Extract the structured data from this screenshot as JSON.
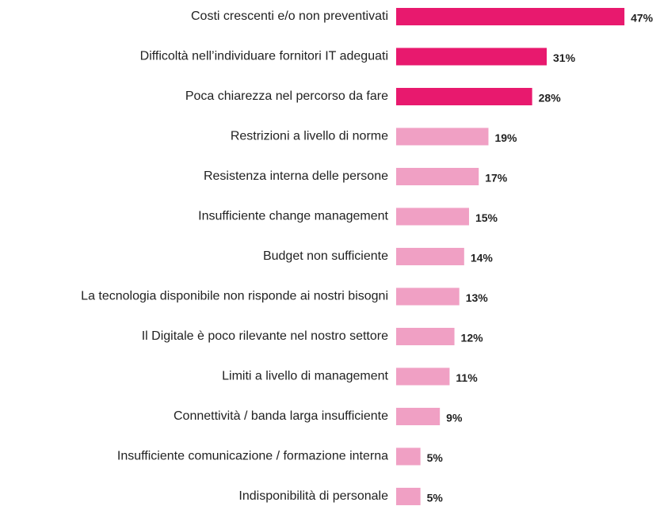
{
  "chart_data": {
    "type": "bar",
    "orientation": "horizontal",
    "categories": [
      "Costi crescenti e/o non preventivati",
      "Difficoltà nell’individuare fornitori IT adeguati",
      "Poca chiarezza nel percorso da fare",
      "Restrizioni a livello di norme",
      "Resistenza interna delle persone",
      "Insufficiente change management",
      "Budget non sufficiente",
      "La tecnologia disponibile non risponde ai nostri bisogni",
      "Il Digitale è poco rilevante nel nostro settore",
      "Limiti a livello di management",
      "Connettività / banda larga insufficiente",
      "Insufficiente comunicazione / formazione interna",
      "Indisponibilità di personale"
    ],
    "values": [
      47,
      31,
      28,
      19,
      17,
      15,
      14,
      13,
      12,
      11,
      9,
      5,
      5
    ],
    "value_labels": [
      "47%",
      "31%",
      "28%",
      "19%",
      "17%",
      "15%",
      "14%",
      "13%",
      "12%",
      "11%",
      "9%",
      "5%",
      "5%"
    ],
    "colors": [
      "#e8196e",
      "#e8196e",
      "#e8196e",
      "#f0a0c4",
      "#f0a0c4",
      "#f0a0c4",
      "#f0a0c4",
      "#f0a0c4",
      "#f0a0c4",
      "#f0a0c4",
      "#f0a0c4",
      "#f0a0c4",
      "#f0a0c4"
    ]
  }
}
